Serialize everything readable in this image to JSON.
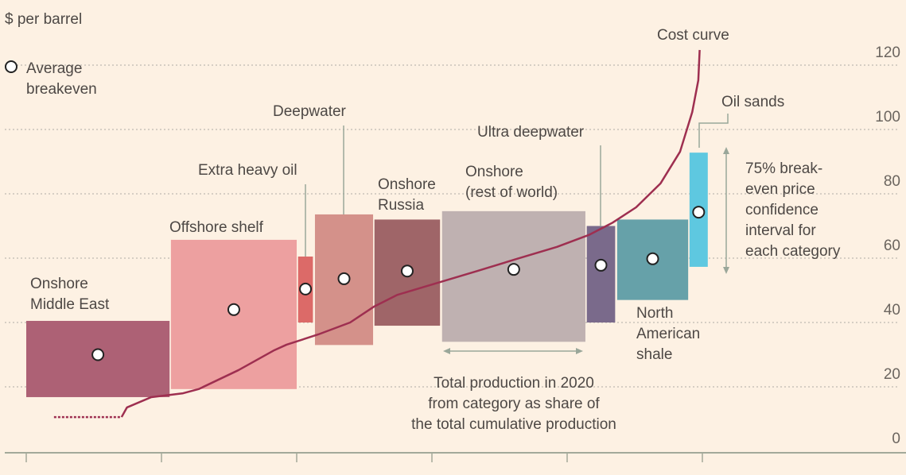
{
  "chart_data": {
    "type": "bar",
    "subtype": "variable-width range bars with cost curve",
    "ylabel": "$ per barrel",
    "ylim": [
      0,
      120
    ],
    "yticks": [
      0,
      20,
      40,
      60,
      80,
      100,
      120
    ],
    "xlim": [
      0,
      100
    ],
    "xticks_unlabeled": [
      0,
      20,
      40,
      60,
      80,
      100
    ],
    "grid": true,
    "legend": {
      "marker": "Average breakeven",
      "lines": [
        "Average",
        "breakeven"
      ]
    },
    "categories": [
      {
        "name": "Onshore Middle East",
        "label_lines": [
          "Onshore",
          "Middle East"
        ],
        "share_start": 0,
        "share_end": 21.2,
        "low": 16.8,
        "high": 40.5,
        "avg": 30,
        "color": "#ad6175"
      },
      {
        "name": "Offshore shelf",
        "label_lines": [
          "Offshore shelf"
        ],
        "share_start": 21.4,
        "share_end": 40.0,
        "low": 19.3,
        "high": 65.7,
        "avg": 44,
        "color": "#eda0a0"
      },
      {
        "name": "Extra heavy oil",
        "label_lines": [
          "Extra heavy oil"
        ],
        "share_start": 40.2,
        "share_end": 42.4,
        "low": 40,
        "high": 60.5,
        "avg": 50.4,
        "color": "#dc6a68"
      },
      {
        "name": "Deepwater",
        "label_lines": [
          "Deepwater"
        ],
        "share_start": 42.7,
        "share_end": 51.3,
        "low": 33,
        "high": 73.6,
        "avg": 53.6,
        "color": "#d4918a"
      },
      {
        "name": "Onshore Russia",
        "label_lines": [
          "Onshore",
          "Russia"
        ],
        "share_start": 51.5,
        "share_end": 61.2,
        "low": 39,
        "high": 72,
        "avg": 56,
        "color": "#9f6568"
      },
      {
        "name": "Onshore (rest of world)",
        "label_lines": [
          "Onshore",
          "(rest of world)"
        ],
        "share_start": 61.5,
        "share_end": 82.7,
        "low": 34,
        "high": 74.6,
        "avg": 56.5,
        "color": "#bfb1b1"
      },
      {
        "name": "Ultra deepwater",
        "label_lines": [
          "Ultra deepwater"
        ],
        "share_start": 82.9,
        "share_end": 87.1,
        "low": 40,
        "high": 70,
        "avg": 57.8,
        "color": "#7a6a8b"
      },
      {
        "name": "North American shale",
        "label_lines": [
          "North",
          "American",
          "shale"
        ],
        "share_start": 87.4,
        "share_end": 97.9,
        "low": 47,
        "high": 72,
        "avg": 59.8,
        "color": "#66a1a9"
      },
      {
        "name": "Oil sands",
        "label_lines": [
          "Oil sands"
        ],
        "share_start": 98.1,
        "share_end": 100.8,
        "low": 57.3,
        "high": 92.8,
        "avg": 74.3,
        "color": "#5ec8e0"
      }
    ],
    "cost_curve": {
      "name": "Cost curve",
      "color": "#9e2f50",
      "dashed_segment": [
        [
          4.1,
          10.6
        ],
        [
          14.1,
          10.6
        ]
      ],
      "points": [
        [
          14.1,
          10.6
        ],
        [
          14.9,
          13.6
        ],
        [
          18.5,
          16.8
        ],
        [
          23.2,
          18.0
        ],
        [
          25.5,
          19.3
        ],
        [
          31.4,
          25.2
        ],
        [
          36.7,
          31.4
        ],
        [
          38.5,
          33.1
        ],
        [
          43.2,
          36.3
        ],
        [
          47.9,
          40.0
        ],
        [
          51.4,
          44.9
        ],
        [
          54.9,
          48.6
        ],
        [
          60.8,
          52.3
        ],
        [
          66.7,
          56.0
        ],
        [
          72.6,
          59.8
        ],
        [
          78.5,
          63.5
        ],
        [
          83.2,
          67.2
        ],
        [
          86.7,
          71.0
        ],
        [
          90.2,
          75.8
        ],
        [
          93.8,
          83.2
        ],
        [
          96.7,
          93.1
        ],
        [
          98.5,
          105.4
        ],
        [
          99.4,
          115.3
        ],
        [
          99.6,
          124.7
        ]
      ]
    },
    "annotations": {
      "range_note": [
        "75% break-",
        "even price",
        "confidence",
        "interval for",
        "each category"
      ],
      "width_note": [
        "Total production in 2020",
        "from category as share of",
        "the total cumulative production"
      ]
    },
    "colors": {
      "background": "#fdf1e3",
      "grid": "#c9c2ba",
      "annotation_line": "#9aa79a",
      "text": "#4d4845"
    }
  }
}
